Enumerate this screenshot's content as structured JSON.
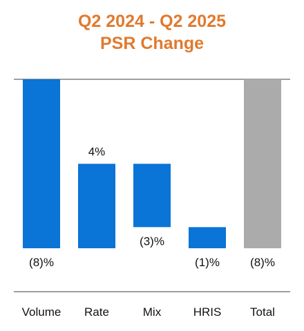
{
  "chart_data": {
    "type": "bar",
    "subtype": "waterfall",
    "title_line1": "Q2 2024 - Q2 2025",
    "title_line2": "PSR Change",
    "categories": [
      "Volume",
      "Rate",
      "Mix",
      "HRIS",
      "Total"
    ],
    "values": [
      -8,
      4,
      -3,
      -1,
      -8
    ],
    "data_labels": [
      "(8)%",
      "4%",
      "(3)%",
      "(1)%",
      "(8)%"
    ],
    "bar_kinds": [
      "delta",
      "delta",
      "delta",
      "delta",
      "total"
    ],
    "grid": false,
    "legend": "none"
  },
  "colors": {
    "title": "#E07A2E",
    "delta_bar": "#0A74D7",
    "total_bar": "#ABABAB",
    "axis_line": "#7F7F7F",
    "text": "#111111"
  }
}
